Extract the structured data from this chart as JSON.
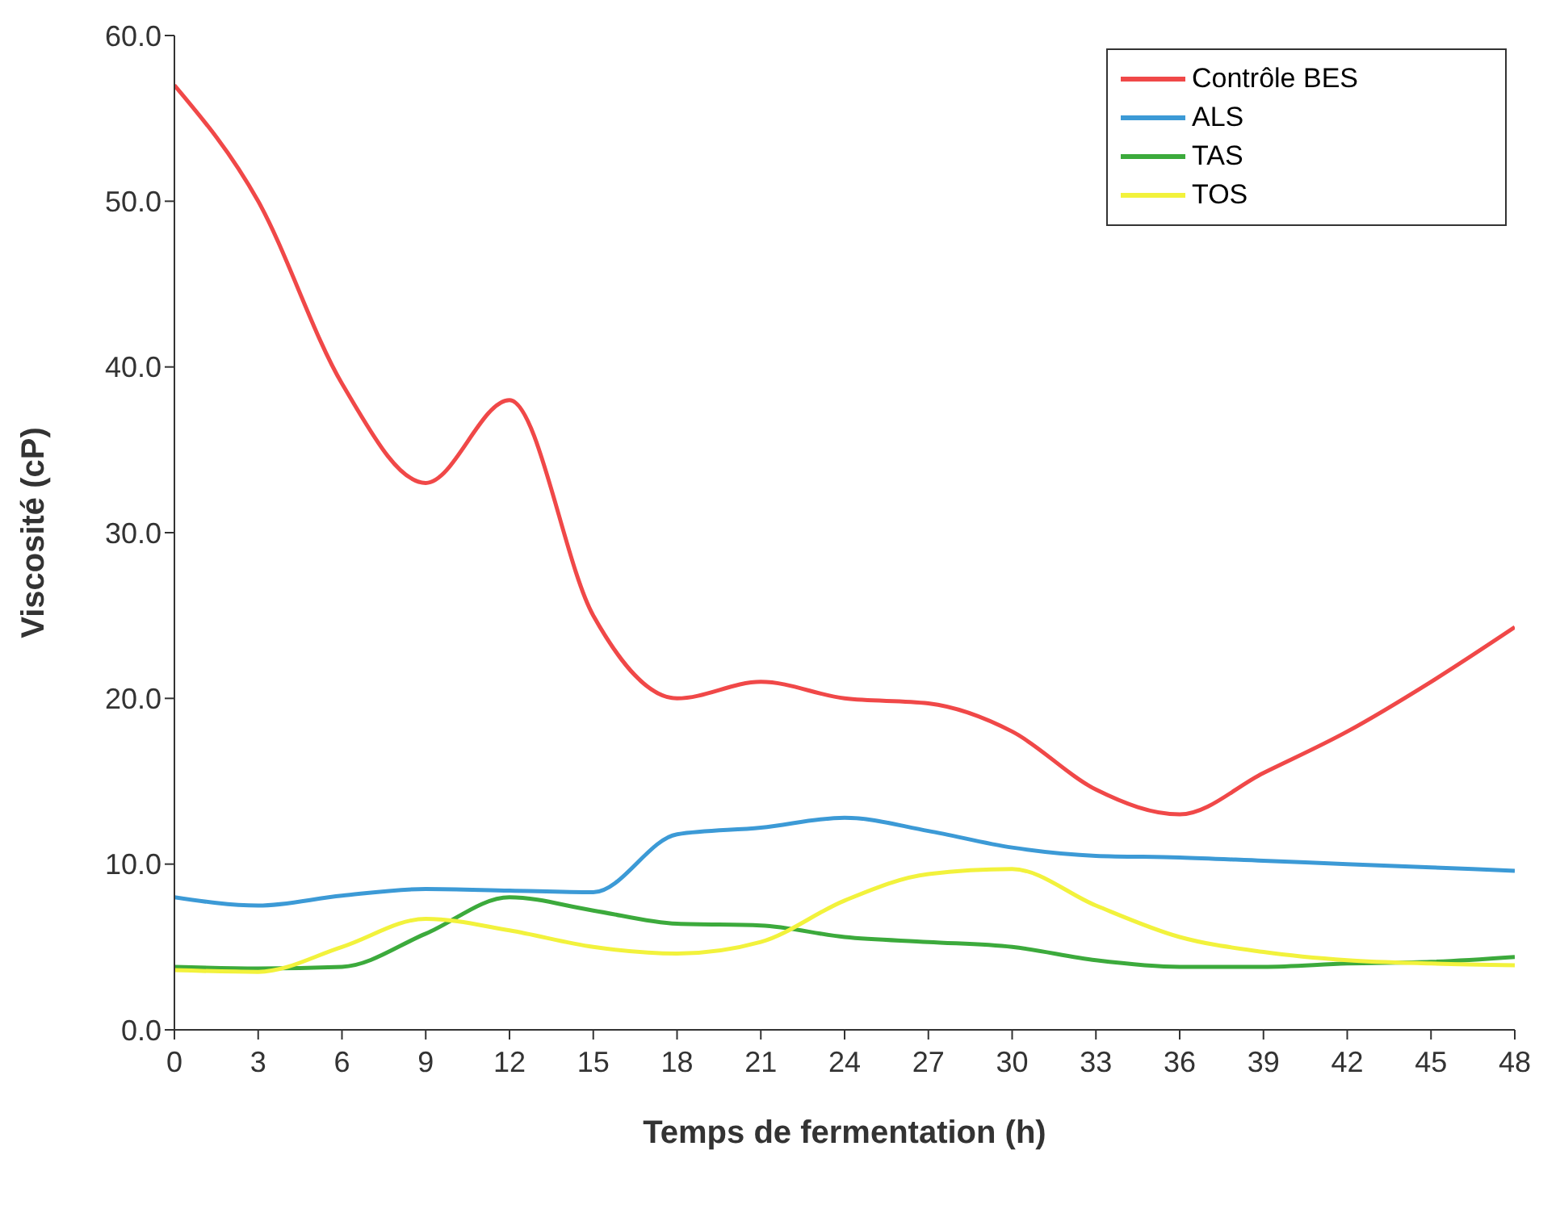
{
  "chart_data": {
    "type": "line",
    "xlabel": "Temps de fermentation (h)",
    "ylabel": "Viscosité (cP)",
    "x": [
      0,
      3,
      6,
      9,
      12,
      15,
      18,
      21,
      24,
      27,
      30,
      33,
      36,
      39,
      42,
      45,
      48
    ],
    "series": [
      {
        "name": "Contrôle BES",
        "color": "#f04848",
        "values": [
          57,
          50,
          39,
          33,
          38,
          25,
          20,
          21,
          20,
          19.7,
          18,
          14.5,
          13,
          15.5,
          18,
          21,
          24.3
        ]
      },
      {
        "name": "ALS",
        "color": "#3c9ad6",
        "values": [
          8,
          7.5,
          8.1,
          8.5,
          8.4,
          8.3,
          11.8,
          12.2,
          12.8,
          12,
          11,
          10.5,
          10.4,
          10.2,
          10,
          9.8,
          9.6
        ]
      },
      {
        "name": "TAS",
        "color": "#3caa3c",
        "values": [
          3.8,
          3.7,
          3.8,
          5.8,
          8,
          7.2,
          6.4,
          6.3,
          5.6,
          5.3,
          5,
          4.2,
          3.8,
          3.8,
          4,
          4.1,
          4.4
        ]
      },
      {
        "name": "TOS",
        "color": "#f2f23c",
        "values": [
          3.6,
          3.5,
          5,
          6.7,
          6,
          5,
          4.6,
          5.3,
          7.8,
          9.4,
          9.7,
          7.5,
          5.6,
          4.7,
          4.2,
          4,
          3.9
        ]
      }
    ],
    "xlim": [
      0,
      48
    ],
    "xticks": [
      0,
      3,
      6,
      9,
      12,
      15,
      18,
      21,
      24,
      27,
      30,
      33,
      36,
      39,
      42,
      45,
      48
    ],
    "ylim": [
      0,
      60
    ],
    "yticks": [
      {
        "value": 0,
        "label": "0.0"
      },
      {
        "value": 10,
        "label": "10.0"
      },
      {
        "value": 20,
        "label": "20.0"
      },
      {
        "value": 30,
        "label": "30.0"
      },
      {
        "value": 40,
        "label": "40.0"
      },
      {
        "value": 50,
        "label": "50.0"
      },
      {
        "value": 60,
        "label": "60.0"
      }
    ],
    "grid": false,
    "legend": "top right",
    "marker": "none",
    "line_style": "solid"
  }
}
